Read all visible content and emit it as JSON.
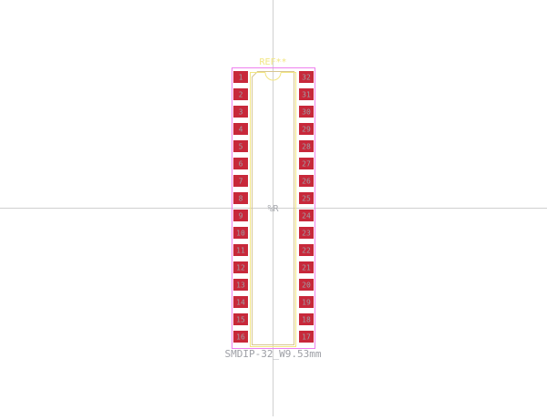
{
  "footprint": {
    "reference": "REF**",
    "value": "SMDIP-32_W9.53mm",
    "user_text": "%R"
  },
  "pads": {
    "left": [
      "1",
      "2",
      "3",
      "4",
      "5",
      "6",
      "7",
      "8",
      "9",
      "10",
      "11",
      "12",
      "13",
      "14",
      "15",
      "16"
    ],
    "right": [
      "32",
      "31",
      "30",
      "29",
      "28",
      "27",
      "26",
      "25",
      "24",
      "23",
      "22",
      "21",
      "20",
      "19",
      "18",
      "17"
    ]
  },
  "colors": {
    "pad": "#c8283a",
    "pad_label": "#9ea0a6",
    "courtyard": "#ee80ee",
    "silkscreen": "#f2e682",
    "fab": "#d8c690",
    "crosshair": "#d0d0d0",
    "value_text": "#9ea0a6",
    "fab_text": "#a6a8ae"
  }
}
